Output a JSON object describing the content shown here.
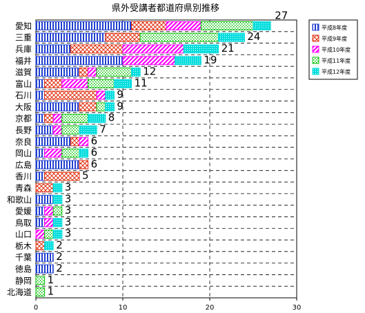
{
  "chart_data": {
    "type": "bar",
    "stacked": true,
    "orientation": "horizontal",
    "title": "県外受講者都道府県別推移",
    "categories": [
      "愛知",
      "三重",
      "兵庫",
      "福井",
      "滋賀",
      "富山",
      "石川",
      "大阪",
      "京都",
      "長野",
      "奈良",
      "岡山",
      "広島",
      "香川",
      "青森",
      "和歌山",
      "愛媛",
      "鳥取",
      "山口",
      "栃木",
      "千葉",
      "徳島",
      "静岡",
      "北海道"
    ],
    "totals": [
      27,
      24,
      21,
      19,
      12,
      11,
      9,
      9,
      8,
      7,
      6,
      6,
      6,
      5,
      3,
      3,
      3,
      3,
      3,
      2,
      2,
      2,
      1,
      1
    ],
    "series": [
      {
        "name": "平成8年度",
        "color": "#1f3fd0",
        "pattern": "vertical-lines",
        "values": [
          11,
          8,
          4,
          10,
          5,
          1,
          1,
          5,
          1,
          2,
          4,
          1,
          5,
          1,
          0,
          2,
          1,
          1,
          0,
          0,
          2,
          2,
          0,
          0
        ]
      },
      {
        "name": "平成9年度",
        "color": "#e03010",
        "pattern": "crosshatch",
        "values": [
          4,
          4,
          6,
          0,
          1,
          2,
          6,
          2,
          1,
          0,
          1,
          0,
          1,
          4,
          2,
          0,
          0,
          0,
          0,
          1,
          0,
          0,
          0,
          0
        ]
      },
      {
        "name": "平成10年度",
        "color": "#ff00ff",
        "pattern": "diagonal",
        "values": [
          4,
          0,
          7,
          6,
          1,
          3,
          1,
          0,
          1,
          1,
          1,
          2,
          0,
          0,
          0,
          0,
          1,
          1,
          1,
          0,
          0,
          0,
          0,
          0
        ]
      },
      {
        "name": "平成11年度",
        "color": "#00c000",
        "pattern": "dots",
        "values": [
          6,
          9,
          0,
          0,
          4,
          3,
          0,
          1,
          3,
          2,
          0,
          2,
          0,
          0,
          0,
          0,
          1,
          0,
          1,
          0,
          0,
          0,
          1,
          1
        ]
      },
      {
        "name": "平成12年度",
        "color": "#00dddd",
        "pattern": "dense-dots",
        "values": [
          2,
          3,
          4,
          3,
          1,
          2,
          1,
          1,
          2,
          2,
          0,
          1,
          0,
          0,
          1,
          1,
          0,
          1,
          1,
          1,
          0,
          0,
          0,
          0
        ]
      }
    ],
    "xlim": [
      0,
      30
    ],
    "xticks": [
      "0",
      "10",
      "20",
      "30"
    ],
    "grid": true,
    "legend_position": "right"
  }
}
